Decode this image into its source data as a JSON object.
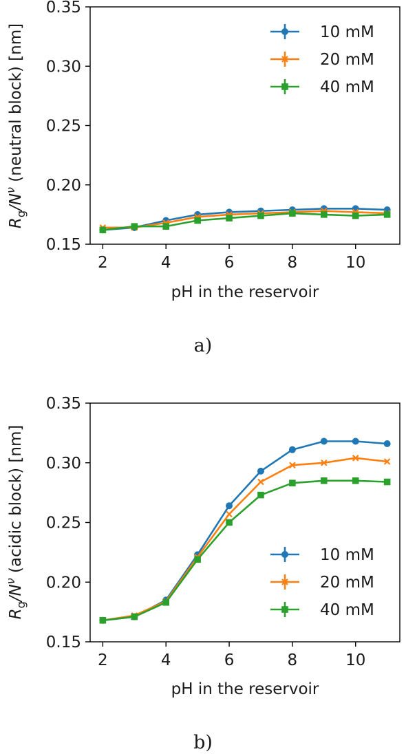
{
  "chart_data": [
    {
      "type": "line",
      "caption": "a)",
      "xlabel": "pH in the reservoir",
      "ylabel": "R_g/N^ν (neutral block) [nm]",
      "ylabel_parts": {
        "r": "R",
        "sub": "g",
        "mid": "/N",
        "sup": "ν",
        "rest": " (neutral block) [nm]"
      },
      "xlim": [
        1.6,
        11.4
      ],
      "ylim": [
        0.15,
        0.35
      ],
      "xticks": [
        2,
        4,
        6,
        8,
        10
      ],
      "yticks": [
        0.15,
        0.2,
        0.25,
        0.3,
        0.35
      ],
      "ytick_labels": [
        "0.15",
        "0.20",
        "0.25",
        "0.30",
        "0.35"
      ],
      "legend_position": "top-right",
      "x": [
        2,
        3,
        4,
        5,
        6,
        7,
        8,
        9,
        10,
        11
      ],
      "series": [
        {
          "name": "10 mM",
          "marker": "circle",
          "color": "#1f77b4",
          "values": [
            0.162,
            0.164,
            0.17,
            0.175,
            0.177,
            0.178,
            0.179,
            0.18,
            0.18,
            0.179
          ]
        },
        {
          "name": "20 mM",
          "marker": "x",
          "color": "#ff7f0e",
          "values": [
            0.164,
            0.164,
            0.168,
            0.173,
            0.175,
            0.176,
            0.177,
            0.178,
            0.177,
            0.176
          ]
        },
        {
          "name": "40 mM",
          "marker": "square",
          "color": "#2ca02c",
          "values": [
            0.162,
            0.165,
            0.165,
            0.17,
            0.172,
            0.174,
            0.176,
            0.175,
            0.174,
            0.175
          ]
        }
      ]
    },
    {
      "type": "line",
      "caption": "b)",
      "xlabel": "pH in the reservoir",
      "ylabel": "R_g/N^ν (acidic block) [nm]",
      "ylabel_parts": {
        "r": "R",
        "sub": "g",
        "mid": "/N",
        "sup": "ν",
        "rest": " (acidic block) [nm]"
      },
      "xlim": [
        1.6,
        11.4
      ],
      "ylim": [
        0.15,
        0.35
      ],
      "xticks": [
        2,
        4,
        6,
        8,
        10
      ],
      "yticks": [
        0.15,
        0.2,
        0.25,
        0.3,
        0.35
      ],
      "ytick_labels": [
        "0.15",
        "0.20",
        "0.25",
        "0.30",
        "0.35"
      ],
      "legend_position": "bottom-right",
      "x": [
        2,
        3,
        4,
        5,
        6,
        7,
        8,
        9,
        10,
        11
      ],
      "series": [
        {
          "name": "10 mM",
          "marker": "circle",
          "color": "#1f77b4",
          "values": [
            0.168,
            0.171,
            0.185,
            0.223,
            0.264,
            0.293,
            0.311,
            0.318,
            0.318,
            0.316
          ]
        },
        {
          "name": "20 mM",
          "marker": "x",
          "color": "#ff7f0e",
          "values": [
            0.168,
            0.172,
            0.184,
            0.221,
            0.257,
            0.284,
            0.298,
            0.3,
            0.304,
            0.301
          ]
        },
        {
          "name": "40 mM",
          "marker": "square",
          "color": "#2ca02c",
          "values": [
            0.168,
            0.171,
            0.183,
            0.219,
            0.25,
            0.273,
            0.283,
            0.285,
            0.285,
            0.284
          ]
        }
      ]
    }
  ]
}
